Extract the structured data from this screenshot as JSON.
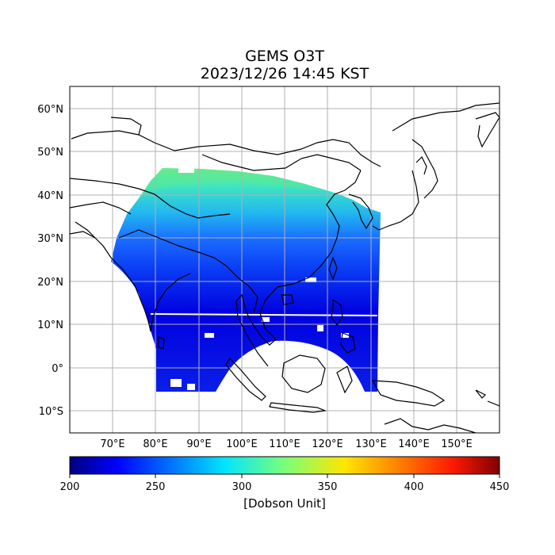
{
  "title": "GEMS O3T",
  "subtitle": "2023/12/26 14:45 KST",
  "map": {
    "lon_range": [
      60,
      160
    ],
    "lat_range": [
      -15,
      65
    ],
    "lat_ticks": [
      {
        "value": 60,
        "label": "60°N"
      },
      {
        "value": 50,
        "label": "50°N"
      },
      {
        "value": 40,
        "label": "40°N"
      },
      {
        "value": 30,
        "label": "30°N"
      },
      {
        "value": 20,
        "label": "20°N"
      },
      {
        "value": 10,
        "label": "10°N"
      },
      {
        "value": 0,
        "label": "0°"
      },
      {
        "value": -10,
        "label": "10°S"
      }
    ],
    "lon_ticks": [
      {
        "value": 70,
        "label": "70°E"
      },
      {
        "value": 80,
        "label": "80°E"
      },
      {
        "value": 90,
        "label": "90°E"
      },
      {
        "value": 100,
        "label": "100°E"
      },
      {
        "value": 110,
        "label": "110°E"
      },
      {
        "value": 120,
        "label": "120°E"
      },
      {
        "value": 130,
        "label": "130°E"
      },
      {
        "value": 140,
        "label": "140°E"
      },
      {
        "value": 150,
        "label": "150°E"
      }
    ],
    "grid": true
  },
  "colorbar": {
    "min": 200,
    "max": 450,
    "ticks": [
      200,
      250,
      300,
      350,
      400,
      450
    ],
    "label": "[Dobson Unit]",
    "colormap": "jet"
  },
  "colors": {
    "coastline": "#000000",
    "gridline": "#b0b0b0",
    "ozone_low": "#0000d0",
    "ozone_mid": "#1a6bff",
    "ozone_high": "#3fe6c0",
    "ozone_peak": "#9cf55a"
  }
}
